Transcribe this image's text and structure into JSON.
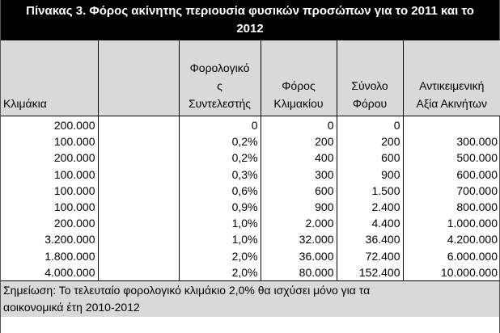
{
  "table": {
    "title_line1": "Πίνακας 3. Φόρος ακίνητης περιουσία φυσικών προσώπων για το 2011 και το",
    "title_line2": "2012",
    "headers": [
      {
        "lines": [
          "Κλιμάκια"
        ]
      },
      {
        "lines": []
      },
      {
        "lines": [
          "Φορολογικό",
          "ς",
          "Συντελεστής"
        ]
      },
      {
        "lines": [
          "Φόρος",
          "Κλιμακίου"
        ]
      },
      {
        "lines": [
          "Σύνολο",
          "Φόρου"
        ]
      },
      {
        "lines": [
          "Αντικειμενική",
          "Αξία Ακινήτων"
        ]
      }
    ],
    "rows": [
      [
        "200.000",
        "",
        "0",
        "0",
        "0",
        ""
      ],
      [
        "100.000",
        "",
        "0,2%",
        "200",
        "200",
        "300.000"
      ],
      [
        "200.000",
        "",
        "0,2%",
        "400",
        "600",
        "500.000"
      ],
      [
        "100.000",
        "",
        "0,3%",
        "300",
        "900",
        "600.000"
      ],
      [
        "100.000",
        "",
        "0,6%",
        "600",
        "1.500",
        "700.000"
      ],
      [
        "100.000",
        "",
        "0,9%",
        "900",
        "2.400",
        "800.000"
      ],
      [
        "200.000",
        "",
        "1,0%",
        "2.000",
        "4.400",
        "1.000.000"
      ],
      [
        "3.200.000",
        "",
        "1,0%",
        "32.000",
        "36.400",
        "4.200.000"
      ],
      [
        "1.800.000",
        "",
        "2,0%",
        "36.000",
        "72.400",
        "6.000.000"
      ],
      [
        "4.000.000",
        "",
        "2,0%",
        "80.000",
        "152.400",
        "10.000.000"
      ]
    ],
    "note_line1": "Σημείωση: Το τελευταίο φορολογικό κλιμάκιο 2,0% θα ισχύσει μόνο για τα",
    "note_line2": "αοικονομικά έτη 2010-2012"
  }
}
